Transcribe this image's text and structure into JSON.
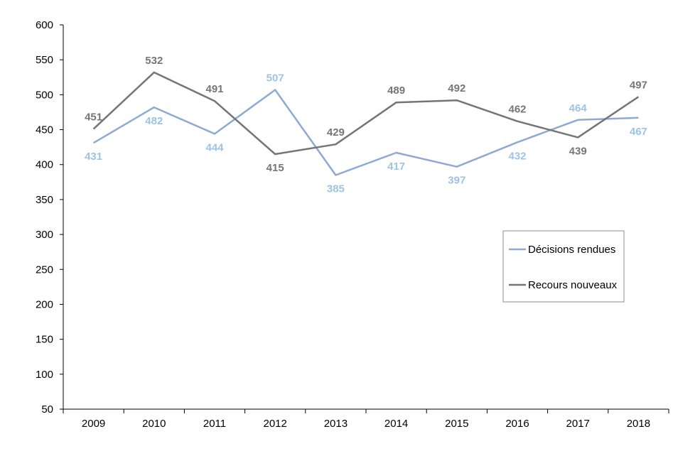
{
  "chart_data": {
    "type": "line",
    "categories": [
      "2009",
      "2010",
      "2011",
      "2012",
      "2013",
      "2014",
      "2015",
      "2016",
      "2017",
      "2018"
    ],
    "ylim": [
      50,
      600
    ],
    "yticks": [
      50,
      100,
      150,
      200,
      250,
      300,
      350,
      400,
      450,
      500,
      550,
      600
    ],
    "grid": false,
    "legend_position": "right",
    "series": [
      {
        "name": "Décisions rendues",
        "color": "#8eaad4",
        "label_color": "#9dc3e6",
        "values": [
          431,
          482,
          444,
          507,
          385,
          417,
          397,
          432,
          464,
          467
        ]
      },
      {
        "name": "Recours nouveaux",
        "color": "#757575",
        "label_color": "#767676",
        "values": [
          451,
          532,
          491,
          415,
          429,
          489,
          492,
          462,
          439,
          497
        ]
      }
    ]
  }
}
